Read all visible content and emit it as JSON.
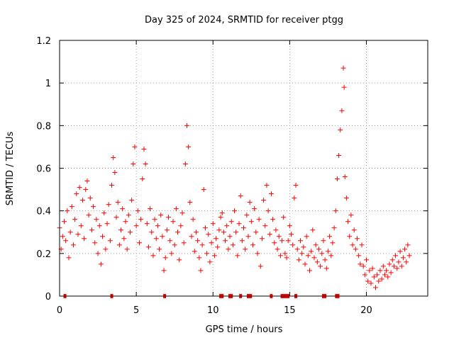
{
  "chart_data": {
    "type": "scatter",
    "title": "Day 325 of 2024, SRMTID for receiver ptgg",
    "xlabel": "GPS time / hours",
    "ylabel": "SRMTID / TECUs",
    "xlim": [
      0,
      24
    ],
    "ylim": [
      0,
      1.2
    ],
    "x_ticks": [
      0,
      5,
      10,
      15,
      20
    ],
    "x_tick_labels": [
      "0",
      "5",
      "10",
      "15",
      "20"
    ],
    "y_ticks": [
      0,
      0.2,
      0.4,
      0.6,
      0.8,
      1.0,
      1.2
    ],
    "y_tick_labels": [
      "0",
      "0.2",
      "0.4",
      "0.6",
      "0.8",
      "1",
      "1.2"
    ],
    "grid": true,
    "marker": "plus",
    "color": "#ff0000",
    "series": [
      {
        "name": "SRMTID",
        "points": [
          [
            0.0,
            0.32
          ],
          [
            0.1,
            0.22
          ],
          [
            0.2,
            0.28
          ],
          [
            0.3,
            0.35
          ],
          [
            0.4,
            0.26
          ],
          [
            0.5,
            0.4
          ],
          [
            0.6,
            0.18
          ],
          [
            0.7,
            0.3
          ],
          [
            0.8,
            0.42
          ],
          [
            0.9,
            0.24
          ],
          [
            1.0,
            0.36
          ],
          [
            1.1,
            0.48
          ],
          [
            1.2,
            0.29
          ],
          [
            1.3,
            0.51
          ],
          [
            1.4,
            0.33
          ],
          [
            1.5,
            0.45
          ],
          [
            1.6,
            0.27
          ],
          [
            1.7,
            0.5
          ],
          [
            1.8,
            0.54
          ],
          [
            1.9,
            0.38
          ],
          [
            2.0,
            0.46
          ],
          [
            2.1,
            0.31
          ],
          [
            2.2,
            0.42
          ],
          [
            2.3,
            0.25
          ],
          [
            2.4,
            0.36
          ],
          [
            2.5,
            0.2
          ],
          [
            2.6,
            0.33
          ],
          [
            2.7,
            0.15
          ],
          [
            2.8,
            0.28
          ],
          [
            2.9,
            0.39
          ],
          [
            3.0,
            0.22
          ],
          [
            3.1,
            0.34
          ],
          [
            3.2,
            0.43
          ],
          [
            3.3,
            0.26
          ],
          [
            3.4,
            0.52
          ],
          [
            3.5,
            0.65
          ],
          [
            3.6,
            0.58
          ],
          [
            3.7,
            0.37
          ],
          [
            3.8,
            0.44
          ],
          [
            3.9,
            0.24
          ],
          [
            4.0,
            0.31
          ],
          [
            4.1,
            0.41
          ],
          [
            4.2,
            0.27
          ],
          [
            4.3,
            0.35
          ],
          [
            4.4,
            0.22
          ],
          [
            4.5,
            0.38
          ],
          [
            4.6,
            0.3
          ],
          [
            4.7,
            0.45
          ],
          [
            4.8,
            0.62
          ],
          [
            4.9,
            0.7
          ],
          [
            5.0,
            0.33
          ],
          [
            5.1,
            0.4
          ],
          [
            5.2,
            0.25
          ],
          [
            5.3,
            0.36
          ],
          [
            5.4,
            0.55
          ],
          [
            5.5,
            0.69
          ],
          [
            5.6,
            0.62
          ],
          [
            5.7,
            0.34
          ],
          [
            5.8,
            0.23
          ],
          [
            5.9,
            0.41
          ],
          [
            6.0,
            0.3
          ],
          [
            6.1,
            0.19
          ],
          [
            6.2,
            0.36
          ],
          [
            6.3,
            0.27
          ],
          [
            6.4,
            0.33
          ],
          [
            6.5,
            0.22
          ],
          [
            6.6,
            0.38
          ],
          [
            6.7,
            0.28
          ],
          [
            6.8,
            0.12
          ],
          [
            6.9,
            0.18
          ],
          [
            7.0,
            0.31
          ],
          [
            7.1,
            0.37
          ],
          [
            7.2,
            0.26
          ],
          [
            7.3,
            0.2
          ],
          [
            7.4,
            0.35
          ],
          [
            7.5,
            0.24
          ],
          [
            7.6,
            0.41
          ],
          [
            7.7,
            0.3
          ],
          [
            7.8,
            0.17
          ],
          [
            7.9,
            0.33
          ],
          [
            8.0,
            0.39
          ],
          [
            8.1,
            0.25
          ],
          [
            8.2,
            0.62
          ],
          [
            8.3,
            0.8
          ],
          [
            8.4,
            0.7
          ],
          [
            8.5,
            0.44
          ],
          [
            8.6,
            0.28
          ],
          [
            8.7,
            0.36
          ],
          [
            8.8,
            0.21
          ],
          [
            8.9,
            0.3
          ],
          [
            9.0,
            0.26
          ],
          [
            9.1,
            0.18
          ],
          [
            9.2,
            0.12
          ],
          [
            9.3,
            0.24
          ],
          [
            9.4,
            0.5
          ],
          [
            9.5,
            0.32
          ],
          [
            9.6,
            0.2
          ],
          [
            9.7,
            0.29
          ],
          [
            9.8,
            0.16
          ],
          [
            9.9,
            0.25
          ],
          [
            10.0,
            0.34
          ],
          [
            10.1,
            0.19
          ],
          [
            10.2,
            0.27
          ],
          [
            10.3,
            0.23
          ],
          [
            10.4,
            0.31
          ],
          [
            10.5,
            0.37
          ],
          [
            10.6,
            0.39
          ],
          [
            10.7,
            0.3
          ],
          [
            10.8,
            0.26
          ],
          [
            10.9,
            0.33
          ],
          [
            11.0,
            0.22
          ],
          [
            11.1,
            0.28
          ],
          [
            11.2,
            0.35
          ],
          [
            11.3,
            0.24
          ],
          [
            11.4,
            0.4
          ],
          [
            11.5,
            0.3
          ],
          [
            11.6,
            0.19
          ],
          [
            11.7,
            0.34
          ],
          [
            11.8,
            0.47
          ],
          [
            11.9,
            0.26
          ],
          [
            12.0,
            0.32
          ],
          [
            12.1,
            0.22
          ],
          [
            12.2,
            0.38
          ],
          [
            12.3,
            0.28
          ],
          [
            12.4,
            0.44
          ],
          [
            12.5,
            0.35
          ],
          [
            12.6,
            0.24
          ],
          [
            12.7,
            0.41
          ],
          [
            12.8,
            0.3
          ],
          [
            12.9,
            0.2
          ],
          [
            13.0,
            0.36
          ],
          [
            13.1,
            0.14
          ],
          [
            13.2,
            0.27
          ],
          [
            13.3,
            0.45
          ],
          [
            13.4,
            0.33
          ],
          [
            13.5,
            0.52
          ],
          [
            13.6,
            0.4
          ],
          [
            13.7,
            0.29
          ],
          [
            13.8,
            0.48
          ],
          [
            13.9,
            0.36
          ],
          [
            14.0,
            0.25
          ],
          [
            14.1,
            0.31
          ],
          [
            14.2,
            0.22
          ],
          [
            14.3,
            0.28
          ],
          [
            14.4,
            0.19
          ],
          [
            14.5,
            0.26
          ],
          [
            14.6,
            0.37
          ],
          [
            14.7,
            0.2
          ],
          [
            14.8,
            0.18
          ],
          [
            14.9,
            0.26
          ],
          [
            15.0,
            0.33
          ],
          [
            15.1,
            0.29
          ],
          [
            15.2,
            0.24
          ],
          [
            15.3,
            0.46
          ],
          [
            15.4,
            0.52
          ],
          [
            15.5,
            0.22
          ],
          [
            15.6,
            0.17
          ],
          [
            15.7,
            0.26
          ],
          [
            15.8,
            0.2
          ],
          [
            15.9,
            0.23
          ],
          [
            16.0,
            0.15
          ],
          [
            16.1,
            0.28
          ],
          [
            16.2,
            0.19
          ],
          [
            16.3,
            0.12
          ],
          [
            16.4,
            0.21
          ],
          [
            16.5,
            0.31
          ],
          [
            16.6,
            0.18
          ],
          [
            16.7,
            0.24
          ],
          [
            16.8,
            0.16
          ],
          [
            16.9,
            0.22
          ],
          [
            17.0,
            0.14
          ],
          [
            17.1,
            0.2
          ],
          [
            17.2,
            0.26
          ],
          [
            17.3,
            0.17
          ],
          [
            17.4,
            0.13
          ],
          [
            17.5,
            0.21
          ],
          [
            17.6,
            0.28
          ],
          [
            17.7,
            0.19
          ],
          [
            17.8,
            0.25
          ],
          [
            17.9,
            0.32
          ],
          [
            18.0,
            0.4
          ],
          [
            18.1,
            0.55
          ],
          [
            18.2,
            0.66
          ],
          [
            18.3,
            0.78
          ],
          [
            18.4,
            0.87
          ],
          [
            18.5,
            1.07
          ],
          [
            18.55,
            0.98
          ],
          [
            18.6,
            0.56
          ],
          [
            18.7,
            0.46
          ],
          [
            18.8,
            0.35
          ],
          [
            18.9,
            0.28
          ],
          [
            19.0,
            0.38
          ],
          [
            19.1,
            0.24
          ],
          [
            19.2,
            0.31
          ],
          [
            19.3,
            0.22
          ],
          [
            19.4,
            0.27
          ],
          [
            19.5,
            0.19
          ],
          [
            19.6,
            0.15
          ],
          [
            19.7,
            0.24
          ],
          [
            19.8,
            0.14
          ],
          [
            19.9,
            0.1
          ],
          [
            20.0,
            0.17
          ],
          [
            20.1,
            0.07
          ],
          [
            20.2,
            0.12
          ],
          [
            20.3,
            0.06
          ],
          [
            20.4,
            0.13
          ],
          [
            20.5,
            0.09
          ],
          [
            20.6,
            0.04
          ],
          [
            20.7,
            0.1
          ],
          [
            20.8,
            0.07
          ],
          [
            20.9,
            0.12
          ],
          [
            21.0,
            0.08
          ],
          [
            21.1,
            0.14
          ],
          [
            21.2,
            0.1
          ],
          [
            21.3,
            0.12
          ],
          [
            21.4,
            0.09
          ],
          [
            21.5,
            0.15
          ],
          [
            21.6,
            0.11
          ],
          [
            21.7,
            0.17
          ],
          [
            21.8,
            0.14
          ],
          [
            21.9,
            0.19
          ],
          [
            22.0,
            0.13
          ],
          [
            22.1,
            0.16
          ],
          [
            22.2,
            0.21
          ],
          [
            22.3,
            0.14
          ],
          [
            22.4,
            0.18
          ],
          [
            22.5,
            0.22
          ],
          [
            22.6,
            0.16
          ],
          [
            22.7,
            0.24
          ],
          [
            22.8,
            0.19
          ]
        ]
      }
    ],
    "zero_markers_x": [
      0.35,
      3.4,
      6.85,
      10.5,
      10.6,
      11.1,
      11.2,
      11.8,
      12.3,
      12.45,
      13.8,
      14.5,
      14.6,
      14.75,
      14.9,
      15.4,
      17.2,
      17.3,
      18.05,
      18.15
    ]
  }
}
